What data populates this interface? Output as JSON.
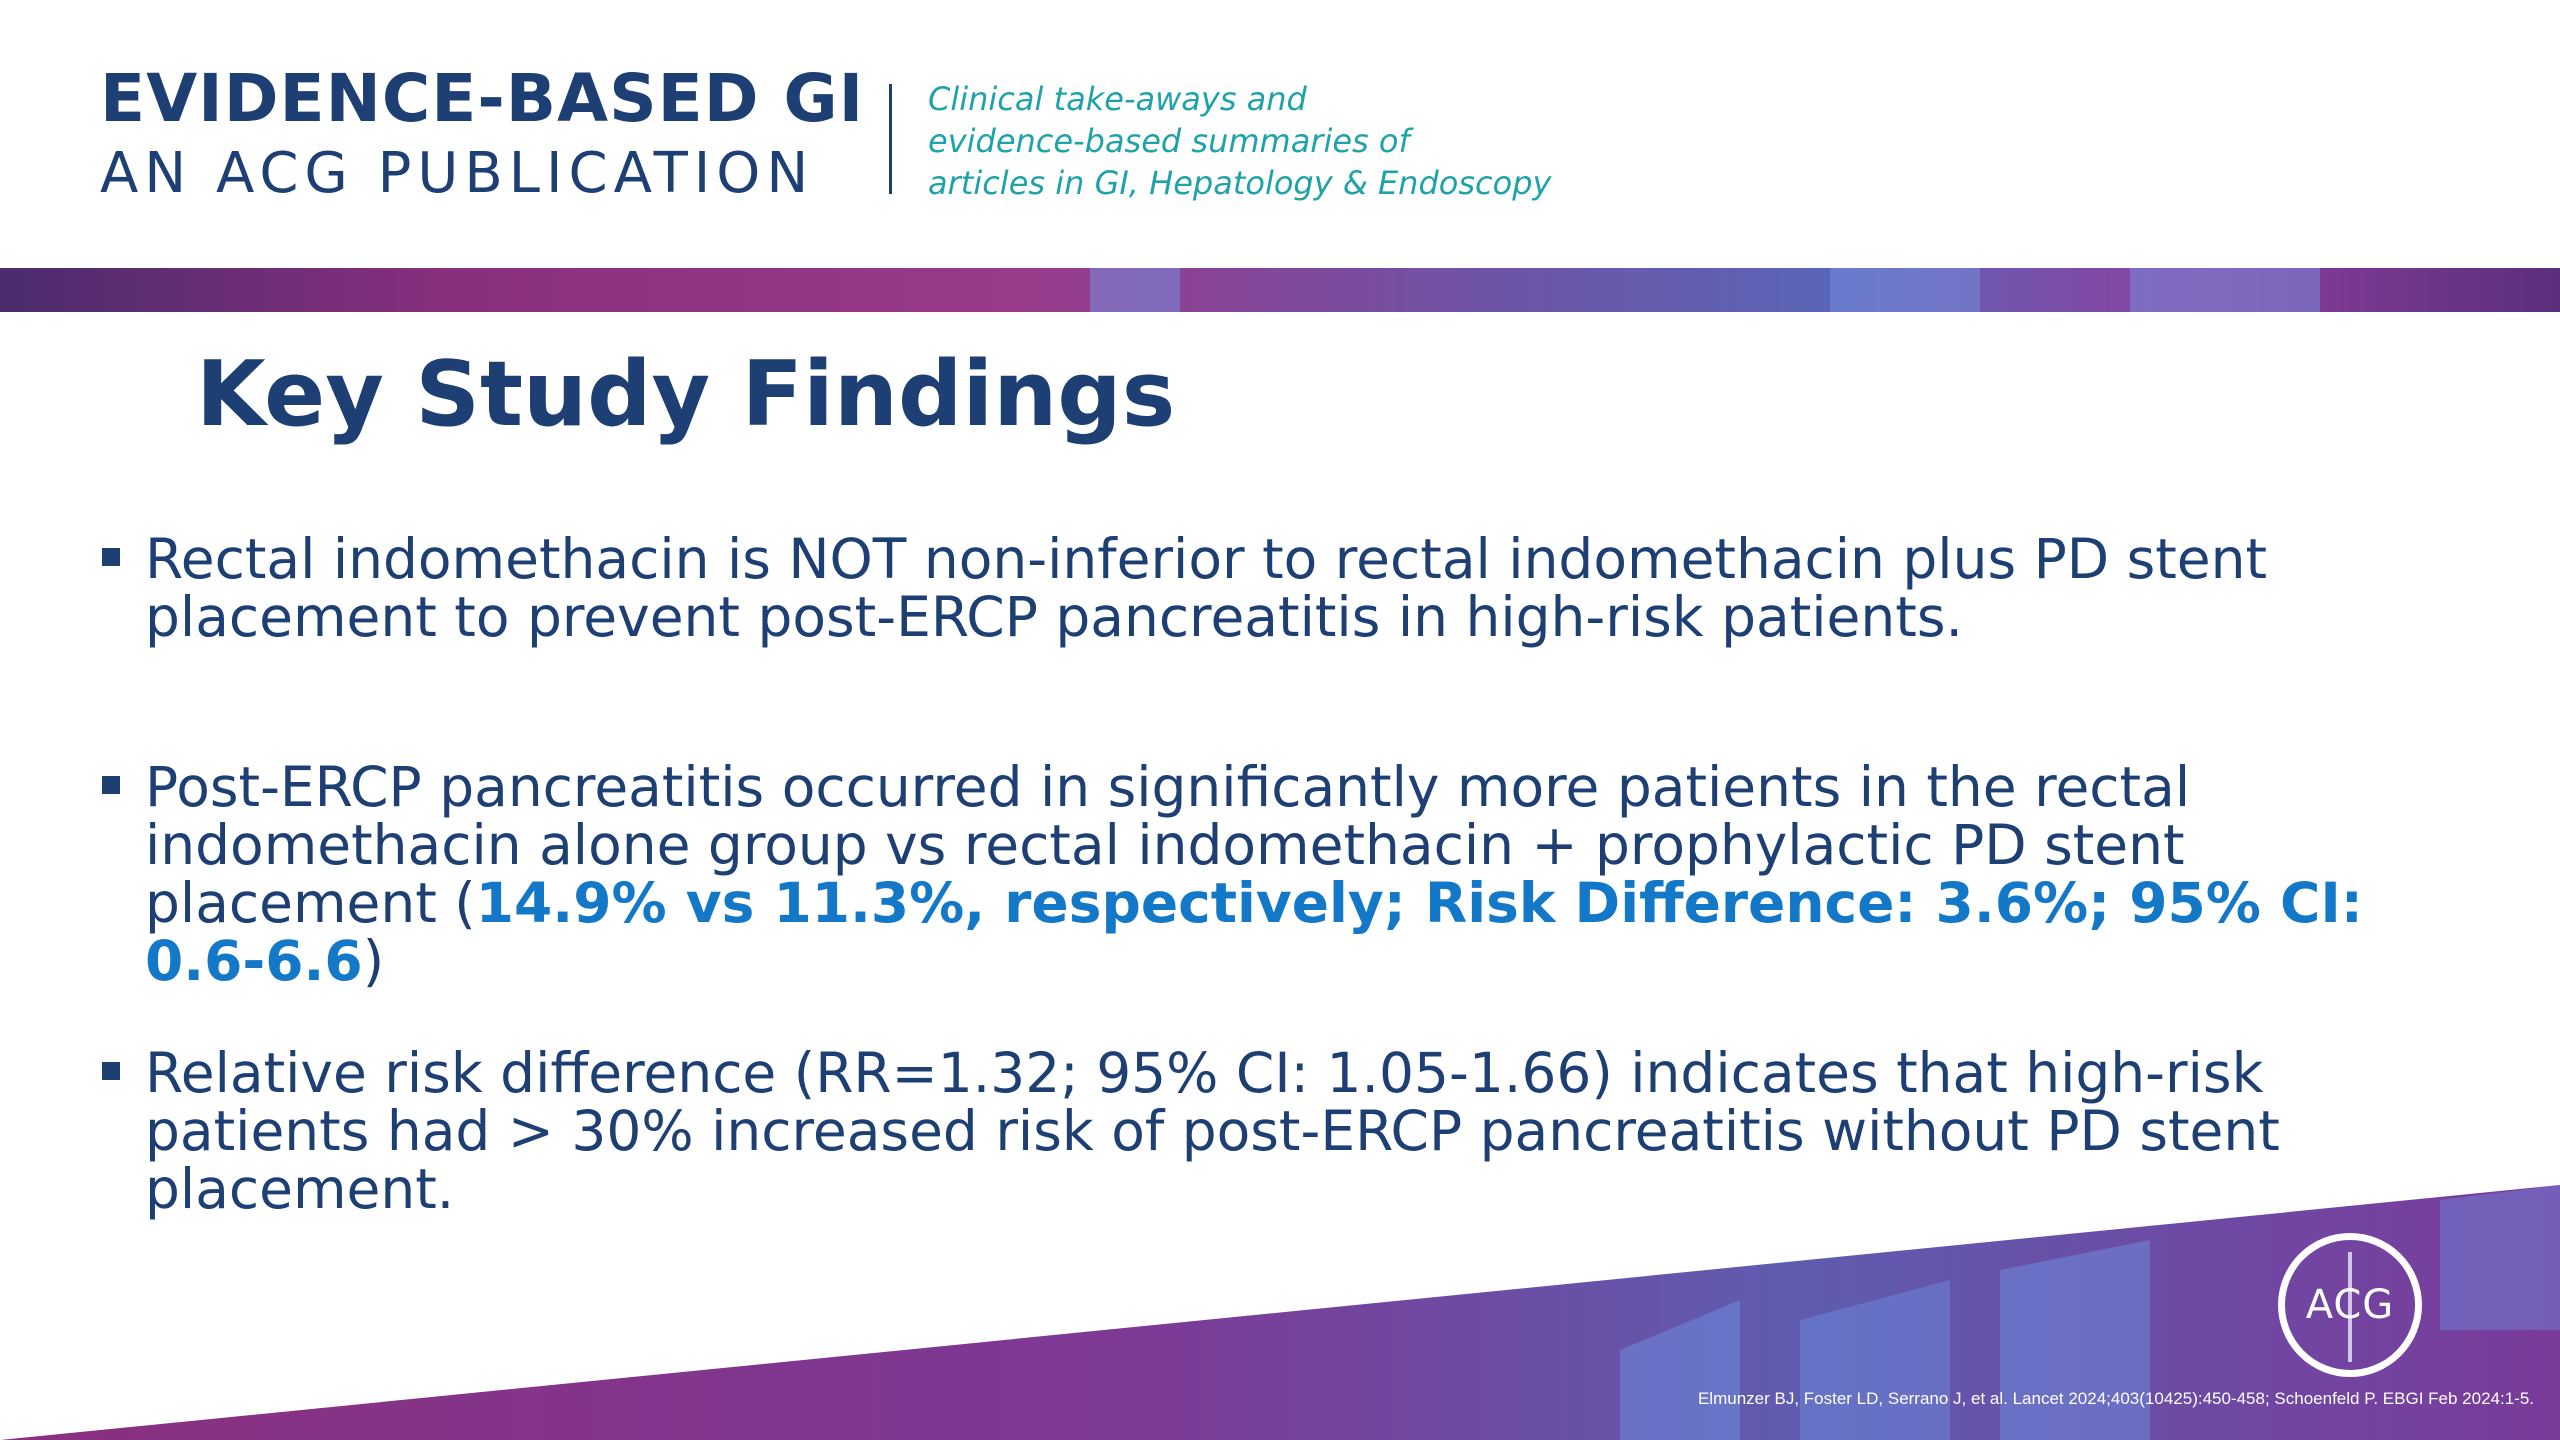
{
  "header": {
    "brand_title": "EVIDENCE-BASED GI",
    "brand_subtitle": "AN ACG PUBLICATION",
    "tagline_lines": [
      "Clinical take-aways and",
      "evidence-based summaries of",
      "articles in GI, Hepatology & Endoscopy"
    ]
  },
  "slide": {
    "title": "Key Study Findings",
    "bullets": [
      {
        "text": "Rectal indomethacin is NOT non-inferior to rectal indomethacin plus PD stent placement to prevent post-ERCP pancreatitis in high-risk patients."
      },
      {
        "text_before": "Post-ERCP pancreatitis occurred in significantly more patients in the rectal indomethacin alone group vs rectal indomethacin + prophylactic PD stent placement (",
        "highlight": "14.9% vs 11.3%, respectively; Risk Difference: 3.6%; 95% CI: 0.6-6.6",
        "text_after": ")"
      },
      {
        "text": "Relative risk difference (RR=1.32; 95% CI: 1.05-1.66) indicates that high-risk patients had > 30% increased risk of post-ERCP pancreatitis without PD stent placement."
      }
    ]
  },
  "footer": {
    "logo_text": "ACG",
    "citation": "Elmunzer BJ, Foster LD, Serrano J, et al. Lancet 2024;403(10425):450-458; Schoenfeld P. EBGI Feb 2024:1-5."
  },
  "colors": {
    "navy": "#1d3f74",
    "teal": "#1fa3a8",
    "highlight_blue": "#1478c8",
    "purple": "#8a2f7e",
    "violet": "#5a66b8"
  }
}
